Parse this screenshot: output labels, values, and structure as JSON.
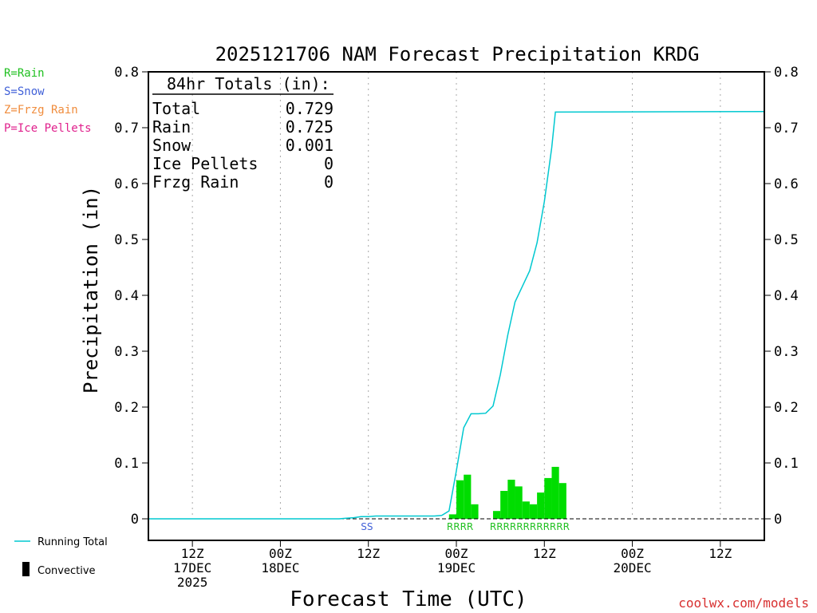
{
  "chart_data": {
    "type": "bar",
    "title": "2025121706 NAM Forecast Precipitation KRDG",
    "xlabel": "Forecast Time (UTC)",
    "ylabel": "Precipitation (in)",
    "ylim": [
      0,
      0.8
    ],
    "yticks": [
      "0",
      "0.1",
      "0.2",
      "0.3",
      "0.4",
      "0.5",
      "0.6",
      "0.7",
      "0.8"
    ],
    "x_unit": "hours since 2025-12-17 06Z",
    "xlim": [
      0,
      84
    ],
    "grid": "vertical dotted",
    "xticks": [
      {
        "hour": 6,
        "line1": "12Z",
        "line2": "17DEC",
        "line3": "2025"
      },
      {
        "hour": 18,
        "line1": "00Z",
        "line2": "18DEC",
        "line3": ""
      },
      {
        "hour": 30,
        "line1": "12Z",
        "line2": "",
        "line3": ""
      },
      {
        "hour": 42,
        "line1": "00Z",
        "line2": "19DEC",
        "line3": ""
      },
      {
        "hour": 54,
        "line1": "12Z",
        "line2": "",
        "line3": ""
      },
      {
        "hour": 66,
        "line1": "00Z",
        "line2": "20DEC",
        "line3": ""
      },
      {
        "hour": 78,
        "line1": "12Z",
        "line2": "",
        "line3": ""
      }
    ],
    "precip_bars": {
      "name": "Convective",
      "color": "#00dd00",
      "hour_start": [
        41,
        42,
        43,
        44,
        47,
        48,
        49,
        50,
        51,
        52,
        53,
        54,
        55,
        56
      ],
      "hour_end": [
        42,
        43,
        44,
        45,
        48,
        49,
        50,
        51,
        52,
        53,
        54,
        55,
        56,
        57
      ],
      "values": [
        0.008,
        0.069,
        0.079,
        0.026,
        0.014,
        0.05,
        0.07,
        0.058,
        0.031,
        0.026,
        0.047,
        0.073,
        0.093,
        0.064
      ]
    },
    "running_total": {
      "name": "Running Total",
      "color": "#00c8d0",
      "hours": [
        0,
        26,
        27,
        28,
        29,
        30,
        31,
        39,
        40,
        41,
        41.5,
        42,
        43,
        44,
        45,
        46,
        47,
        48,
        49,
        50,
        51,
        52,
        53,
        54,
        55,
        55.5,
        84
      ],
      "values": [
        0,
        0,
        0.001,
        0.002,
        0.004,
        0.004,
        0.005,
        0.005,
        0.006,
        0.014,
        0.05,
        0.086,
        0.163,
        0.188,
        0.188,
        0.189,
        0.202,
        0.258,
        0.328,
        0.388,
        0.416,
        0.444,
        0.494,
        0.568,
        0.664,
        0.728,
        0.729
      ]
    },
    "ptype_labels": [
      {
        "hour": 29.8,
        "text": "SS",
        "color": "#4060d8"
      },
      {
        "hour": 42.5,
        "text": "RRRR",
        "color": "#20c020"
      },
      {
        "hour": 52,
        "text": "RRRRRRRRRRRR",
        "color": "#20c020"
      }
    ],
    "totals_box": {
      "heading": "84hr Totals (in):",
      "rows": [
        {
          "label": "Total",
          "value": "0.729"
        },
        {
          "label": "Rain",
          "value": "0.725"
        },
        {
          "label": "Snow",
          "value": "0.001"
        },
        {
          "label": "Ice Pellets",
          "value": "0"
        },
        {
          "label": "Frzg Rain",
          "value": "0"
        }
      ]
    },
    "ptype_legend": [
      {
        "text": "R=Rain",
        "color": "#20c020"
      },
      {
        "text": "S=Snow",
        "color": "#4060d8"
      },
      {
        "text": "Z=Frzg Rain",
        "color": "#f08c3c"
      },
      {
        "text": "P=Ice Pellets",
        "color": "#e0208c"
      }
    ],
    "line_legend": [
      {
        "text": "Running Total",
        "kind": "line",
        "color": "#00c8d0"
      },
      {
        "text": "Convective",
        "kind": "bar",
        "color": "#000000"
      }
    ],
    "credit": "coolwx.com/models"
  }
}
